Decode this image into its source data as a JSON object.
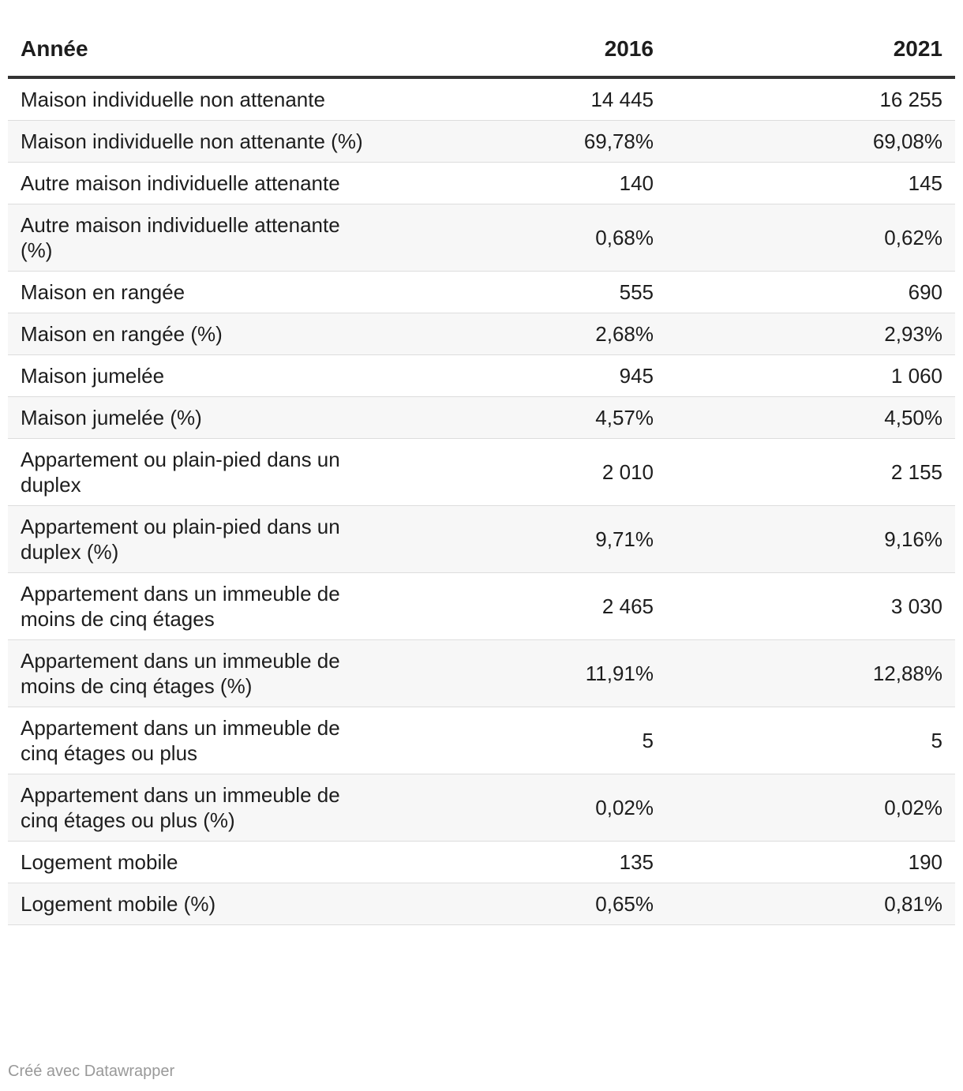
{
  "chart_data": {
    "type": "table",
    "columns": [
      "Année",
      "2016",
      "2021"
    ],
    "rows": [
      {
        "label": "Maison individuelle non attenante",
        "values": [
          "14 445",
          "16 255"
        ]
      },
      {
        "label": "Maison individuelle non attenante (%)",
        "values": [
          "69,78%",
          "69,08%"
        ]
      },
      {
        "label": "Autre maison individuelle attenante",
        "values": [
          "140",
          "145"
        ]
      },
      {
        "label": "Autre maison individuelle attenante (%)",
        "values": [
          "0,68%",
          "0,62%"
        ]
      },
      {
        "label": "Maison en rangée",
        "values": [
          "555",
          "690"
        ]
      },
      {
        "label": "Maison en rangée (%)",
        "values": [
          "2,68%",
          "2,93%"
        ]
      },
      {
        "label": "Maison jumelée",
        "values": [
          "945",
          "1 060"
        ]
      },
      {
        "label": "Maison jumelée (%)",
        "values": [
          "4,57%",
          "4,50%"
        ]
      },
      {
        "label": "Appartement ou plain-pied dans un duplex",
        "values": [
          "2 010",
          "2 155"
        ]
      },
      {
        "label": "Appartement ou plain-pied dans un duplex (%)",
        "values": [
          "9,71%",
          "9,16%"
        ]
      },
      {
        "label": "Appartement dans un immeuble de moins de cinq étages",
        "values": [
          "2 465",
          "3 030"
        ]
      },
      {
        "label": "Appartement dans un immeuble de moins de cinq étages (%)",
        "values": [
          "11,91%",
          "12,88%"
        ]
      },
      {
        "label": "Appartement dans un immeuble de cinq étages ou plus",
        "values": [
          "5",
          "5"
        ]
      },
      {
        "label": "Appartement dans un immeuble de cinq étages ou plus (%)",
        "values": [
          "0,02%",
          "0,02%"
        ]
      },
      {
        "label": "Logement mobile",
        "values": [
          "135",
          "190"
        ]
      },
      {
        "label": "Logement mobile (%)",
        "values": [
          "0,65%",
          "0,81%"
        ]
      }
    ]
  },
  "footer": {
    "credit": "Créé avec Datawrapper"
  },
  "colors": {
    "text": "#1d1d1d",
    "header_rule": "#333333",
    "row_divider": "#dddddd",
    "stripe": "#f7f7f7",
    "footer_text": "#999999"
  }
}
